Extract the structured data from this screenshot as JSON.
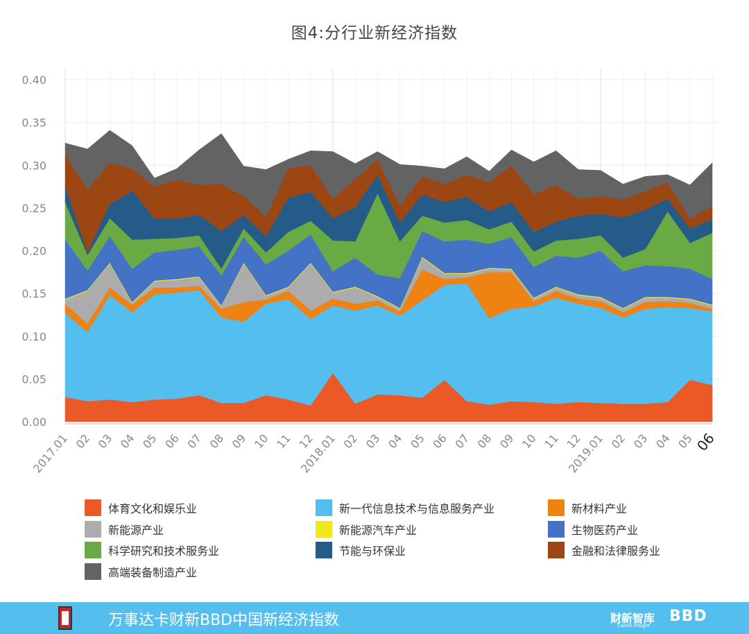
{
  "chart_data": {
    "type": "area",
    "title": "图4:分行业新经济指数",
    "stacked": true,
    "xlabel": "",
    "ylabel": "",
    "ylim": [
      0,
      0.4
    ],
    "yticks": [
      "0.00",
      "0.05",
      "0.10",
      "0.15",
      "0.20",
      "0.25",
      "0.30",
      "0.35",
      "0.40"
    ],
    "grid": true,
    "legend_position": "bottom",
    "categories": [
      "2017.01",
      "02",
      "03",
      "04",
      "05",
      "06",
      "07",
      "08",
      "09",
      "10",
      "11",
      "12",
      "2018.01",
      "02",
      "03",
      "04",
      "05",
      "06",
      "07",
      "08",
      "09",
      "10",
      "11",
      "12",
      "2019.01",
      "02",
      "03",
      "04",
      "05",
      "06"
    ],
    "series": [
      {
        "name": "体育文化和娱乐业",
        "color": "#e95a26",
        "values": [
          0.029,
          0.024,
          0.026,
          0.023,
          0.026,
          0.027,
          0.031,
          0.022,
          0.022,
          0.031,
          0.026,
          0.019,
          0.057,
          0.021,
          0.032,
          0.031,
          0.028,
          0.049,
          0.024,
          0.02,
          0.024,
          0.023,
          0.021,
          0.023,
          0.022,
          0.021,
          0.021,
          0.023,
          0.049,
          0.043
        ]
      },
      {
        "name": "新一代信息技术与信息服务产业",
        "color": "#54bfee",
        "values": [
          0.098,
          0.081,
          0.122,
          0.105,
          0.123,
          0.124,
          0.123,
          0.1,
          0.095,
          0.107,
          0.117,
          0.101,
          0.079,
          0.109,
          0.104,
          0.093,
          0.114,
          0.111,
          0.138,
          0.101,
          0.108,
          0.112,
          0.124,
          0.115,
          0.111,
          0.101,
          0.111,
          0.111,
          0.084,
          0.086
        ]
      },
      {
        "name": "新材料产业",
        "color": "#ee8213",
        "values": [
          0.011,
          0.01,
          0.009,
          0.009,
          0.008,
          0.006,
          0.005,
          0.01,
          0.023,
          0.005,
          0.01,
          0.01,
          0.008,
          0.008,
          0.006,
          0.005,
          0.036,
          0.007,
          0.007,
          0.054,
          0.043,
          0.006,
          0.008,
          0.006,
          0.008,
          0.006,
          0.008,
          0.007,
          0.006,
          0.003
        ]
      },
      {
        "name": "新能源产业",
        "color": "#acacac",
        "values": [
          0.005,
          0.038,
          0.028,
          0.002,
          0.007,
          0.009,
          0.01,
          0.003,
          0.045,
          0.004,
          0.004,
          0.055,
          0.007,
          0.019,
          0.004,
          0.003,
          0.014,
          0.006,
          0.004,
          0.004,
          0.003,
          0.003,
          0.004,
          0.004,
          0.004,
          0.004,
          0.005,
          0.004,
          0.004,
          0.004
        ]
      },
      {
        "name": "新能源汽车产业",
        "color": "#f2e91a",
        "values": [
          0.001,
          0.001,
          0.001,
          0.001,
          0.001,
          0.001,
          0.001,
          0.001,
          0.001,
          0.001,
          0.001,
          0.001,
          0.001,
          0.001,
          0.001,
          0.001,
          0.001,
          0.001,
          0.001,
          0.001,
          0.001,
          0.001,
          0.001,
          0.001,
          0.001,
          0.001,
          0.001,
          0.001,
          0.001,
          0.001
        ]
      },
      {
        "name": "生物医药产业",
        "color": "#4472c4",
        "values": [
          0.069,
          0.023,
          0.031,
          0.039,
          0.033,
          0.034,
          0.035,
          0.035,
          0.03,
          0.036,
          0.042,
          0.033,
          0.024,
          0.034,
          0.025,
          0.035,
          0.03,
          0.037,
          0.039,
          0.028,
          0.037,
          0.036,
          0.036,
          0.043,
          0.054,
          0.043,
          0.037,
          0.036,
          0.035,
          0.03
        ]
      },
      {
        "name": "科学研究和技术服务业",
        "color": "#6aaa45",
        "values": [
          0.044,
          0.018,
          0.021,
          0.034,
          0.016,
          0.014,
          0.013,
          0.008,
          0.01,
          0.014,
          0.022,
          0.016,
          0.036,
          0.019,
          0.095,
          0.043,
          0.018,
          0.022,
          0.023,
          0.017,
          0.018,
          0.018,
          0.018,
          0.022,
          0.018,
          0.016,
          0.019,
          0.064,
          0.03,
          0.054
        ]
      },
      {
        "name": "节能与环保业",
        "color": "#245b87",
        "values": [
          0.019,
          0.003,
          0.017,
          0.057,
          0.024,
          0.023,
          0.024,
          0.044,
          0.016,
          0.019,
          0.04,
          0.034,
          0.026,
          0.04,
          0.022,
          0.022,
          0.025,
          0.024,
          0.027,
          0.021,
          0.023,
          0.023,
          0.022,
          0.027,
          0.025,
          0.047,
          0.046,
          0.015,
          0.017,
          0.016
        ]
      },
      {
        "name": "金融和法律服务业",
        "color": "#9b4613",
        "values": [
          0.036,
          0.074,
          0.048,
          0.026,
          0.037,
          0.045,
          0.035,
          0.055,
          0.022,
          0.023,
          0.035,
          0.031,
          0.023,
          0.033,
          0.018,
          0.02,
          0.021,
          0.021,
          0.026,
          0.034,
          0.043,
          0.044,
          0.043,
          0.02,
          0.021,
          0.021,
          0.022,
          0.019,
          0.012,
          0.015
        ]
      },
      {
        "name": "高端装备制造产业",
        "color": "#636363",
        "values": [
          0.014,
          0.047,
          0.038,
          0.027,
          0.01,
          0.013,
          0.041,
          0.059,
          0.035,
          0.055,
          0.01,
          0.017,
          0.055,
          0.018,
          0.009,
          0.048,
          0.012,
          0.018,
          0.021,
          0.013,
          0.018,
          0.038,
          0.04,
          0.034,
          0.03,
          0.018,
          0.017,
          0.009,
          0.039,
          0.051
        ]
      }
    ]
  },
  "footer": {
    "title": "万事达卡财新BBD中国新经济指数",
    "brand1": "财新智库",
    "brand1_sub": "Caixin Insight",
    "brand2": "BBD",
    "logo_icon": "nei-logo-icon"
  }
}
